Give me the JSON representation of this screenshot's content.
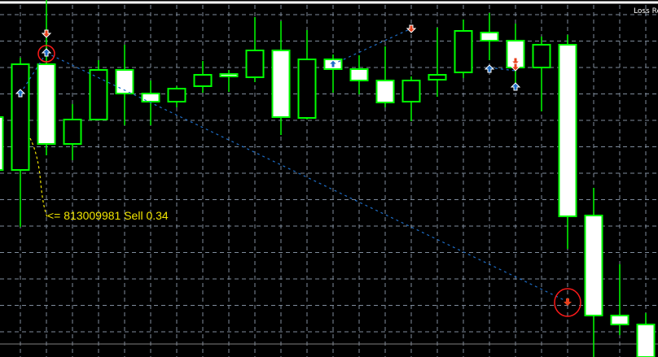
{
  "chart_data": {
    "type": "candlestick",
    "grid": true,
    "colors": {
      "background": "#000000",
      "grid": "#7f8c9c",
      "candle_outline": "#00ff00",
      "bear_body": "#ffffff",
      "bull_body": "#000000",
      "trade_line": "#1e6ec8",
      "sell_marker": "#e8401c",
      "buy_marker": "#1e6ec8",
      "highlight_circle": "#ff1a1a",
      "annotation": "#f2e600",
      "bid_line": "#808080"
    },
    "candles": [
      {
        "o": 295,
        "h": 300,
        "l": 229,
        "c": 230
      },
      {
        "o": 230,
        "h": 368,
        "l": 160,
        "c": 360
      },
      {
        "o": 360,
        "h": 439,
        "l": 248,
        "c": 262
      },
      {
        "o": 262,
        "h": 311,
        "l": 242,
        "c": 292
      },
      {
        "o": 292,
        "h": 365,
        "l": 292,
        "c": 353
      },
      {
        "o": 353,
        "h": 384,
        "l": 285,
        "c": 324
      },
      {
        "o": 324,
        "h": 340,
        "l": 285,
        "c": 314
      },
      {
        "o": 314,
        "h": 333,
        "l": 307,
        "c": 330
      },
      {
        "o": 333,
        "h": 364,
        "l": 325,
        "c": 347
      },
      {
        "o": 348,
        "h": 353,
        "l": 326,
        "c": 345
      },
      {
        "o": 344,
        "h": 418,
        "l": 338,
        "c": 377
      },
      {
        "o": 377,
        "h": 413,
        "l": 273,
        "c": 295
      },
      {
        "o": 294,
        "h": 402,
        "l": 292,
        "c": 366
      },
      {
        "o": 366,
        "h": 372,
        "l": 325,
        "c": 354
      },
      {
        "o": 354,
        "h": 371,
        "l": 323,
        "c": 340
      },
      {
        "o": 340,
        "h": 382,
        "l": 307,
        "c": 313
      },
      {
        "o": 314,
        "h": 345,
        "l": 290,
        "c": 340
      },
      {
        "o": 341,
        "h": 405,
        "l": 320,
        "c": 347
      },
      {
        "o": 350,
        "h": 415,
        "l": 343,
        "c": 401
      },
      {
        "o": 399,
        "h": 423,
        "l": 365,
        "c": 389
      },
      {
        "o": 389,
        "h": 410,
        "l": 332,
        "c": 356
      },
      {
        "o": 356,
        "h": 394,
        "l": 302,
        "c": 384
      },
      {
        "o": 384,
        "h": 396,
        "l": 133,
        "c": 173
      },
      {
        "o": 174,
        "h": 208,
        "l": 0,
        "c": 51
      },
      {
        "o": 51,
        "h": 114,
        "l": 27,
        "c": 40
      },
      {
        "o": 40,
        "h": 54,
        "l": 0,
        "c": 0
      }
    ],
    "markers": [
      {
        "type": "buy",
        "candle": 1,
        "price": 324
      },
      {
        "type": "sell",
        "candle": 2,
        "price": 398
      },
      {
        "type": "buy",
        "candle": 2,
        "price": 374,
        "circled": true
      },
      {
        "type": "buy",
        "candle": 13,
        "price": 360
      },
      {
        "type": "sell",
        "candle": 16,
        "price": 404
      },
      {
        "type": "buy",
        "candle": 19,
        "price": 354
      },
      {
        "type": "sell",
        "candle": 20,
        "price": 364
      },
      {
        "type": "sell",
        "candle": 20,
        "price": 357
      },
      {
        "type": "buy",
        "candle": 20,
        "price": 332
      },
      {
        "type": "sell",
        "candle": 22,
        "price": 68,
        "circled": true
      }
    ],
    "trade_lines": [
      {
        "from": {
          "candle": 1,
          "price": 324
        },
        "to": {
          "candle": 2,
          "price": 374
        }
      },
      {
        "from": {
          "candle": 2,
          "price": 374
        },
        "to": {
          "candle": 22,
          "price": 68
        }
      },
      {
        "from": {
          "candle": 13,
          "price": 360
        },
        "to": {
          "candle": 16,
          "price": 404
        }
      },
      {
        "from": {
          "candle": 19,
          "price": 356
        },
        "to": {
          "candle": 20,
          "price": 352
        }
      }
    ],
    "annotation": {
      "text": "<= 813009981 Sell 0.34"
    }
  },
  "corner_label": "Loss Re"
}
